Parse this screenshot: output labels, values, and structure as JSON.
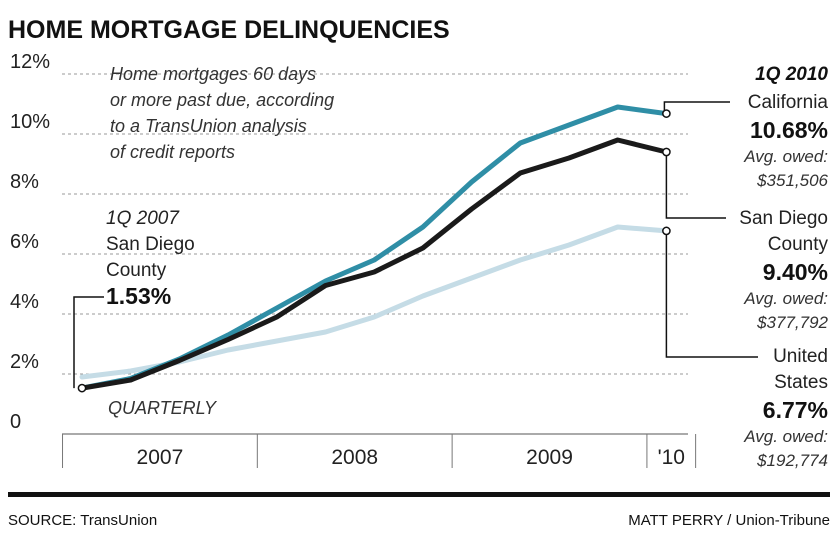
{
  "chart_data": {
    "type": "line",
    "title": "HOME MORTGAGE DELINQUENCIES",
    "note": [
      "Home mortgages 60 days",
      "or more past due, according",
      "to a TransUnion analysis",
      "of credit reports"
    ],
    "frequency_label": "QUARTERLY",
    "yticks": [
      "0",
      "2%",
      "4%",
      "6%",
      "8%",
      "10%",
      "12%"
    ],
    "ylim": [
      0,
      12
    ],
    "xticks": [
      "2007",
      "2008",
      "2009",
      "'10"
    ],
    "quarters": [
      "1Q 2007",
      "2Q 2007",
      "3Q 2007",
      "4Q 2007",
      "1Q 2008",
      "2Q 2008",
      "3Q 2008",
      "4Q 2008",
      "1Q 2009",
      "2Q 2009",
      "3Q 2009",
      "4Q 2009",
      "1Q 2010"
    ],
    "series": [
      {
        "name": "United States",
        "color": "#c5dce6",
        "values": [
          1.9,
          2.1,
          2.4,
          2.8,
          3.1,
          3.4,
          3.9,
          4.6,
          5.2,
          5.8,
          6.3,
          6.9,
          6.77
        ]
      },
      {
        "name": "California",
        "color": "#2f8ea6",
        "values": [
          1.53,
          1.85,
          2.5,
          3.3,
          4.2,
          5.1,
          5.8,
          6.9,
          8.4,
          9.7,
          10.3,
          10.9,
          10.68
        ]
      },
      {
        "name": "San Diego County",
        "color": "#1a1a1a",
        "values": [
          1.53,
          1.8,
          2.45,
          3.15,
          3.9,
          4.95,
          5.4,
          6.2,
          7.5,
          8.7,
          9.2,
          9.8,
          9.4
        ]
      }
    ],
    "annotations": {
      "start": {
        "period": "1Q 2007",
        "label": [
          "San Diego",
          "County"
        ],
        "value": "1.53%"
      },
      "end_period": "1Q 2010",
      "end": [
        {
          "label": [
            "California"
          ],
          "value": "10.68%",
          "owed": [
            "Avg. owed:",
            "$351,506"
          ]
        },
        {
          "label": [
            "San Diego",
            "County"
          ],
          "value": "9.40%",
          "owed": [
            "Avg. owed:",
            "$377,792"
          ]
        },
        {
          "label": [
            "United",
            "States"
          ],
          "value": "6.77%",
          "owed": [
            "Avg. owed:",
            "$192,774"
          ]
        }
      ]
    },
    "grid": true
  },
  "footer": {
    "source": "SOURCE: TransUnion",
    "credit": "MATT PERRY / Union-Tribune"
  }
}
